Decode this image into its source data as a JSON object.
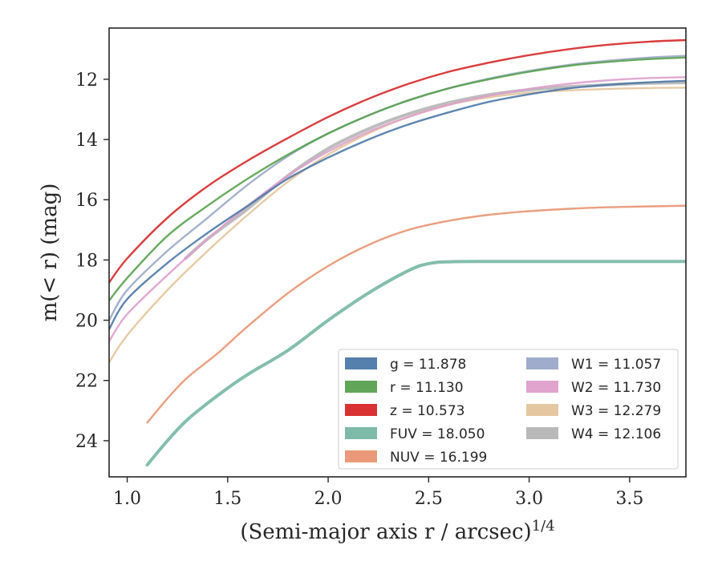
{
  "chart_data": {
    "type": "line",
    "title": "",
    "xlabel": "(Semi-major axis r / arcsec)",
    "xlabel_superscript": "1/4",
    "ylabel": "m(< r) (mag)",
    "xlim": [
      0.91,
      3.78
    ],
    "ylim": [
      25.2,
      10.3
    ],
    "y_inverted": true,
    "grid": false,
    "legend_placement": "lower-right",
    "x_ticks": [
      {
        "value": 1.0,
        "label": "1.0"
      },
      {
        "value": 1.5,
        "label": "1.5"
      },
      {
        "value": 2.0,
        "label": "2.0"
      },
      {
        "value": 2.5,
        "label": "2.5"
      },
      {
        "value": 3.0,
        "label": "3.0"
      },
      {
        "value": 3.5,
        "label": "3.5"
      }
    ],
    "y_ticks": [
      {
        "value": 12,
        "label": "12"
      },
      {
        "value": 14,
        "label": "14"
      },
      {
        "value": 16,
        "label": "16"
      },
      {
        "value": 18,
        "label": "18"
      },
      {
        "value": 20,
        "label": "20"
      },
      {
        "value": 22,
        "label": "22"
      },
      {
        "value": 24,
        "label": "24"
      }
    ],
    "series": [
      {
        "name": "g",
        "legend_label": "g = 11.878",
        "color": "#4c78a8",
        "x": [
          0.91,
          1.0,
          1.2,
          1.4,
          1.6,
          1.8,
          2.0,
          2.2,
          2.4,
          2.6,
          2.8,
          3.0,
          3.2,
          3.4,
          3.6,
          3.78
        ],
        "y": [
          20.3,
          19.3,
          18.1,
          17.1,
          16.2,
          15.3,
          14.6,
          14.0,
          13.5,
          13.1,
          12.75,
          12.5,
          12.3,
          12.18,
          12.1,
          12.05
        ]
      },
      {
        "name": "r",
        "legend_label": "r = 11.130",
        "color": "#59a14f",
        "x": [
          0.91,
          1.0,
          1.2,
          1.4,
          1.6,
          1.8,
          2.0,
          2.2,
          2.4,
          2.6,
          2.8,
          3.0,
          3.2,
          3.4,
          3.6,
          3.78
        ],
        "y": [
          19.35,
          18.6,
          17.2,
          16.2,
          15.3,
          14.5,
          13.8,
          13.2,
          12.7,
          12.3,
          12.0,
          11.75,
          11.55,
          11.42,
          11.33,
          11.28
        ]
      },
      {
        "name": "z",
        "legend_label": "z = 10.573",
        "color": "#d62728",
        "x": [
          0.91,
          1.0,
          1.2,
          1.4,
          1.6,
          1.8,
          2.0,
          2.2,
          2.4,
          2.6,
          2.8,
          3.0,
          3.2,
          3.4,
          3.6,
          3.78
        ],
        "y": [
          18.75,
          17.95,
          16.6,
          15.55,
          14.7,
          13.95,
          13.25,
          12.65,
          12.15,
          11.75,
          11.45,
          11.2,
          11.0,
          10.85,
          10.75,
          10.7
        ]
      },
      {
        "name": "FUV",
        "legend_label": "FUV = 18.050",
        "color": "#76b7a3",
        "x": [
          1.1,
          1.2,
          1.3,
          1.45,
          1.6,
          1.8,
          2.0,
          2.2,
          2.4,
          2.5,
          2.6,
          2.8,
          3.0,
          3.2,
          3.4,
          3.6,
          3.78
        ],
        "y": [
          24.8,
          24.0,
          23.3,
          22.5,
          21.8,
          21.0,
          20.0,
          19.1,
          18.35,
          18.12,
          18.06,
          18.05,
          18.05,
          18.05,
          18.05,
          18.05,
          18.05
        ]
      },
      {
        "name": "NUV",
        "legend_label": "NUV = 16.199",
        "color": "#e89372",
        "x": [
          1.1,
          1.2,
          1.3,
          1.45,
          1.6,
          1.8,
          2.0,
          2.2,
          2.4,
          2.6,
          2.8,
          3.0,
          3.2,
          3.4,
          3.6,
          3.78
        ],
        "y": [
          23.4,
          22.6,
          21.9,
          21.1,
          20.2,
          19.1,
          18.2,
          17.5,
          17.0,
          16.7,
          16.5,
          16.38,
          16.3,
          16.25,
          16.22,
          16.2
        ]
      },
      {
        "name": "W1",
        "legend_label": "W1 = 11.057",
        "color": "#9aa8c9",
        "x": [
          0.91,
          1.0,
          1.2,
          1.4,
          1.6,
          1.8,
          2.0,
          2.2,
          2.4,
          2.6,
          2.8,
          3.0,
          3.2,
          3.4,
          3.6,
          3.78
        ],
        "y": [
          20.0,
          19.0,
          17.7,
          16.6,
          15.5,
          14.55,
          13.8,
          13.2,
          12.7,
          12.3,
          11.98,
          11.72,
          11.52,
          11.38,
          11.28,
          11.22
        ]
      },
      {
        "name": "W2",
        "legend_label": "W2 = 11.730",
        "color": "#df9fcc",
        "x": [
          0.91,
          1.0,
          1.2,
          1.4,
          1.6,
          1.8,
          2.0,
          2.2,
          2.4,
          2.6,
          2.8,
          3.0,
          3.2,
          3.4,
          3.6,
          3.78
        ],
        "y": [
          20.7,
          19.8,
          18.5,
          17.3,
          16.2,
          15.2,
          14.4,
          13.75,
          13.25,
          12.85,
          12.55,
          12.32,
          12.15,
          12.03,
          11.96,
          11.93
        ]
      },
      {
        "name": "W3",
        "legend_label": "W3 = 12.279",
        "color": "#e3c49c",
        "x": [
          0.91,
          1.0,
          1.2,
          1.4,
          1.6,
          1.8,
          2.0,
          2.2,
          2.4,
          2.6,
          2.8,
          3.0,
          3.2,
          3.4,
          3.6,
          3.78
        ],
        "y": [
          21.4,
          20.5,
          19.0,
          17.7,
          16.5,
          15.4,
          14.5,
          13.8,
          13.25,
          12.85,
          12.6,
          12.45,
          12.37,
          12.32,
          12.29,
          12.28
        ]
      },
      {
        "name": "W4",
        "legend_label": "W4 = 12.106",
        "color": "#b5b5b5",
        "x": [
          1.29,
          1.4,
          1.5,
          1.6,
          1.8,
          2.0,
          2.2,
          2.4,
          2.6,
          2.8,
          3.0,
          3.2,
          3.4,
          3.6,
          3.78
        ],
        "y": [
          17.95,
          17.3,
          16.8,
          16.3,
          15.2,
          14.3,
          13.65,
          13.15,
          12.78,
          12.52,
          12.35,
          12.25,
          12.18,
          12.13,
          12.11
        ]
      }
    ],
    "legend_columns": [
      [
        "g",
        "r",
        "z",
        "FUV",
        "NUV"
      ],
      [
        "W1",
        "W2",
        "W3",
        "W4"
      ]
    ]
  }
}
